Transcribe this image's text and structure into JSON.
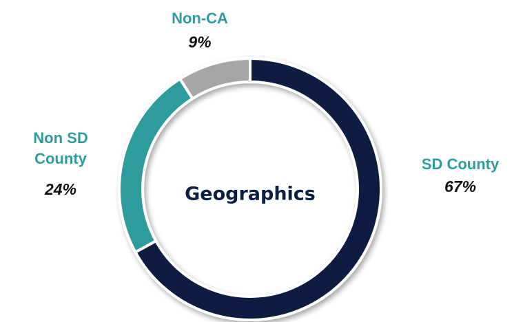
{
  "chart_data": {
    "type": "donut",
    "title": "Geographics",
    "categories": [
      "SD County",
      "Non SD County",
      "Non-CA"
    ],
    "values": [
      67,
      24,
      9
    ],
    "value_labels": [
      "67%",
      "24%",
      "9%"
    ],
    "colors": [
      "#0b1f40",
      "#2e9c9c",
      "#a6a6a6"
    ]
  }
}
